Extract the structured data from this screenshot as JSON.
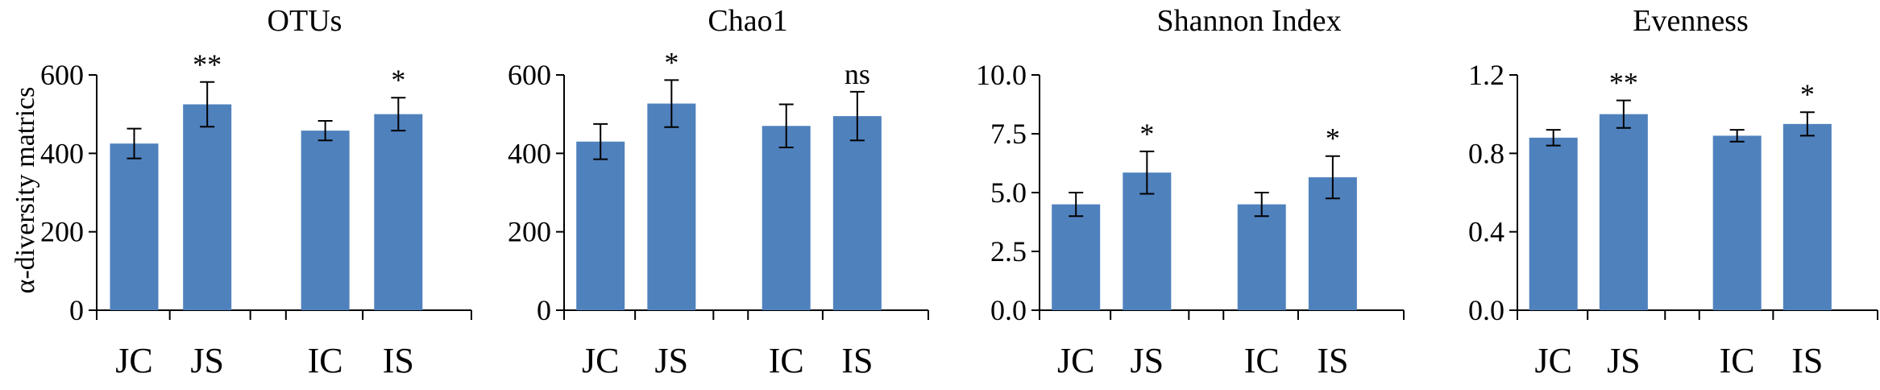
{
  "y_axis_label": "α-diversity matrics",
  "colors": {
    "bar": "#4f81bd",
    "axis": "#000000",
    "error_bar": "#000000"
  },
  "chart_data": [
    {
      "type": "bar",
      "title": "OTUs",
      "categories": [
        "JC",
        "JS",
        "IC",
        "IS"
      ],
      "values": [
        425,
        525,
        458,
        500
      ],
      "errors": [
        38,
        57,
        25,
        42
      ],
      "significance": [
        "",
        "**",
        "",
        "*"
      ],
      "ylim": [
        0,
        600
      ],
      "yticks": [
        "0",
        "200",
        "400",
        "600"
      ],
      "ytick_values": [
        0,
        200,
        400,
        600
      ]
    },
    {
      "type": "bar",
      "title": "Chao1",
      "categories": [
        "JC",
        "JS",
        "IC",
        "IS"
      ],
      "values": [
        430,
        527,
        470,
        495
      ],
      "errors": [
        45,
        60,
        55,
        62
      ],
      "significance": [
        "",
        "*",
        "",
        "ns"
      ],
      "ylim": [
        0,
        600
      ],
      "yticks": [
        "0",
        "200",
        "400",
        "600"
      ],
      "ytick_values": [
        0,
        200,
        400,
        600
      ]
    },
    {
      "type": "bar",
      "title": "Shannon Index",
      "categories": [
        "JC",
        "JS",
        "IC",
        "IS"
      ],
      "values": [
        4.5,
        5.85,
        4.5,
        5.65
      ],
      "errors": [
        0.5,
        0.9,
        0.5,
        0.9
      ],
      "significance": [
        "",
        "*",
        "",
        "*"
      ],
      "ylim": [
        0,
        10
      ],
      "yticks": [
        "0.0",
        "2.5",
        "5.0",
        "7.5",
        "10.0"
      ],
      "ytick_values": [
        0,
        2.5,
        5,
        7.5,
        10
      ]
    },
    {
      "type": "bar",
      "title": "Evenness",
      "categories": [
        "JC",
        "JS",
        "IC",
        "IS"
      ],
      "values": [
        0.88,
        1.0,
        0.89,
        0.95
      ],
      "errors": [
        0.04,
        0.07,
        0.03,
        0.06
      ],
      "significance": [
        "",
        "**",
        "",
        "*"
      ],
      "ylim": [
        0,
        1.2
      ],
      "yticks": [
        "0.0",
        "0.4",
        "0.8",
        "1.2"
      ],
      "ytick_values": [
        0,
        0.4,
        0.8,
        1.2
      ]
    }
  ]
}
